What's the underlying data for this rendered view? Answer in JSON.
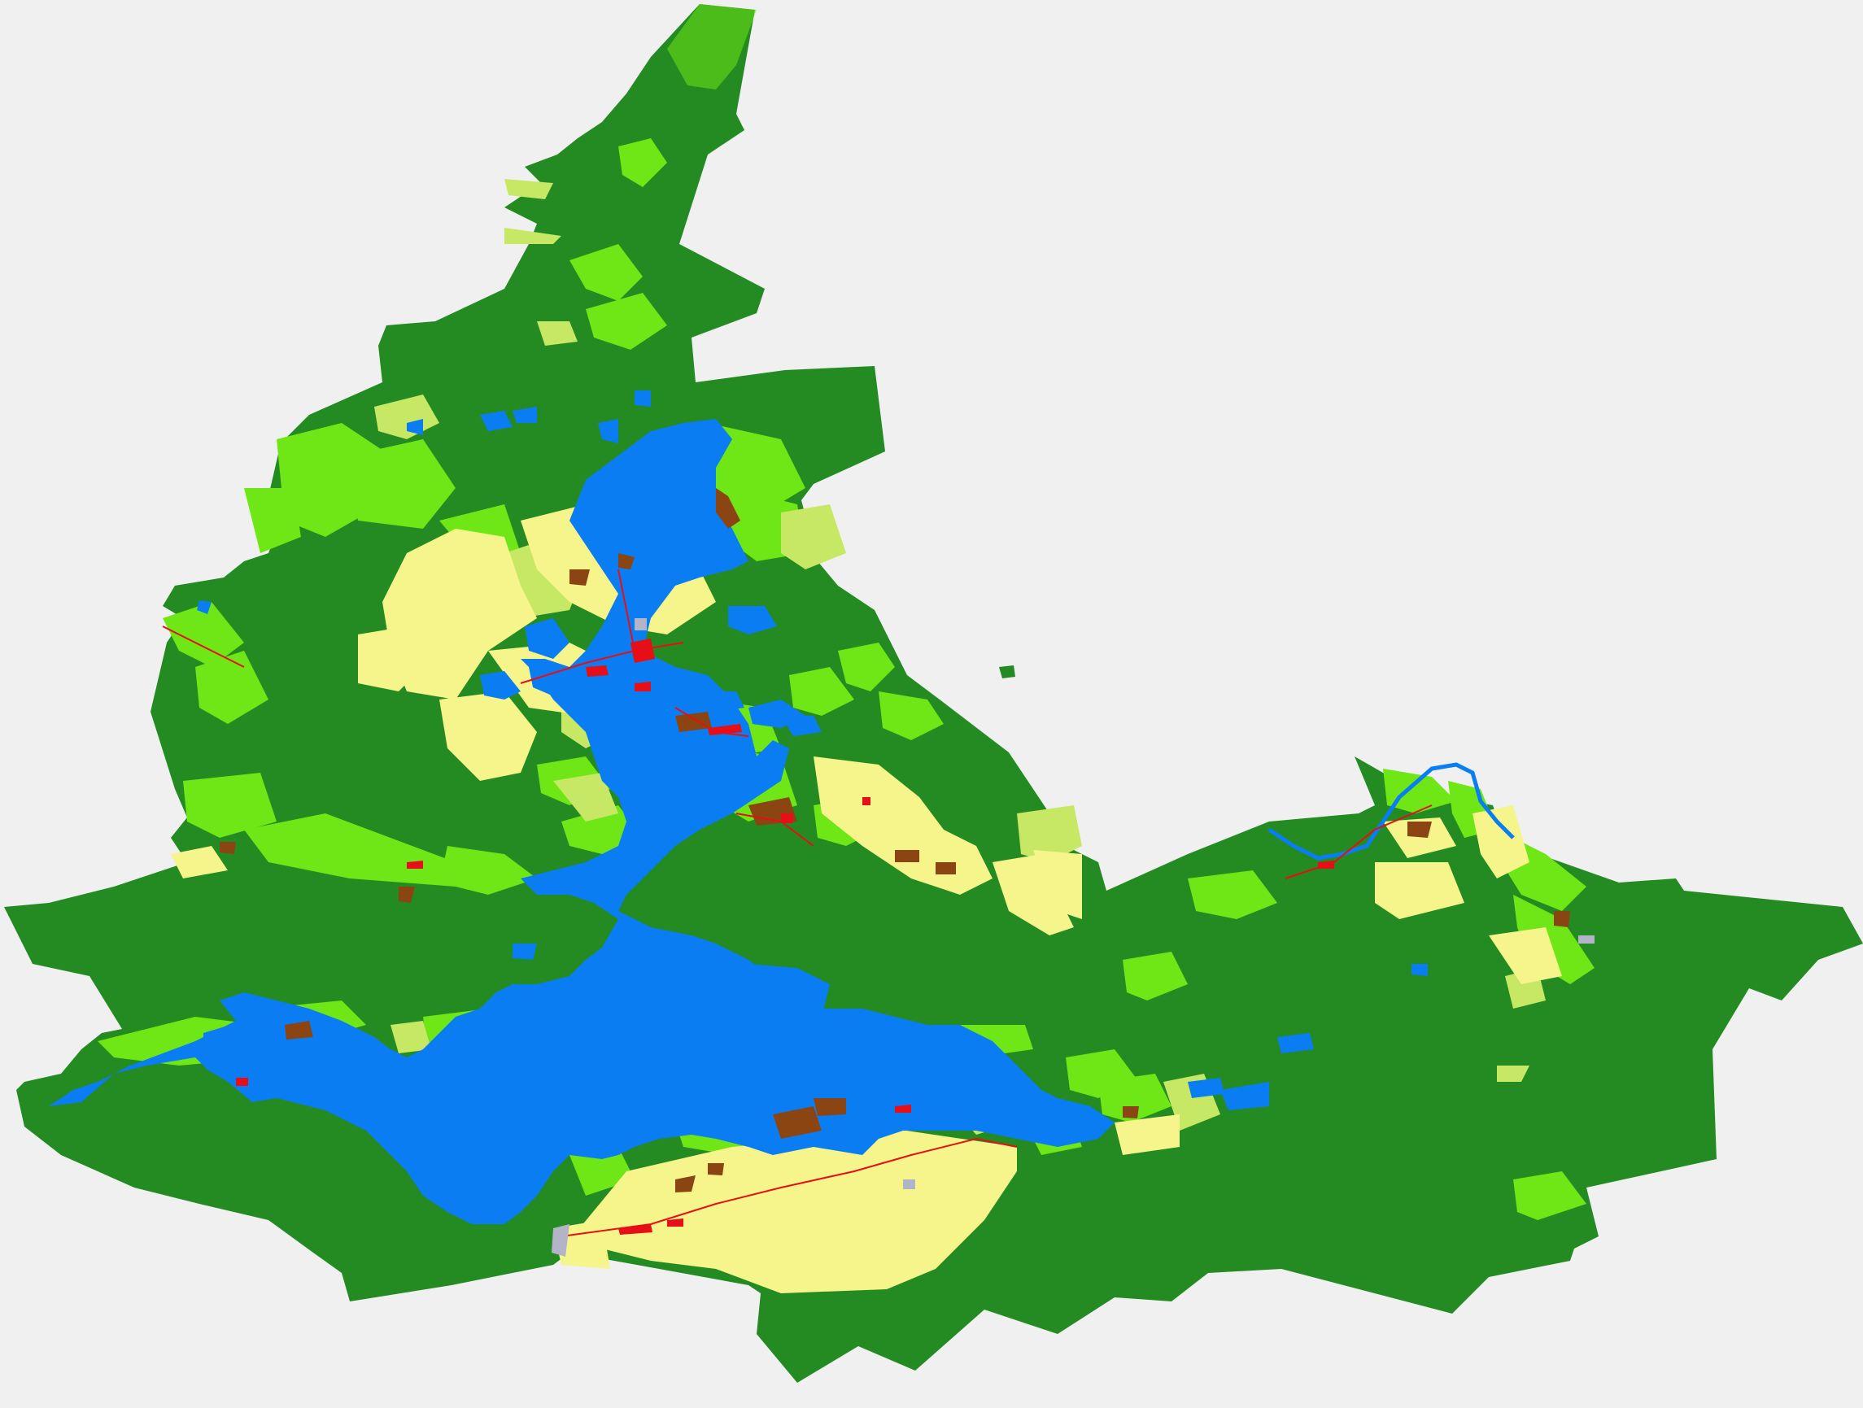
{
  "map": {
    "type": "land-cover raster",
    "background_color": "#f0f0f0",
    "classes": [
      {
        "key": "forest",
        "color": "#238b22"
      },
      {
        "key": "grassland",
        "color": "#6fe615"
      },
      {
        "key": "shrub",
        "color": "#c7e864"
      },
      {
        "key": "cropland",
        "color": "#f5f58c"
      },
      {
        "key": "water",
        "color": "#0a7df2"
      },
      {
        "key": "built-up",
        "color": "#e60f17"
      },
      {
        "key": "bare",
        "color": "#8b4513"
      },
      {
        "key": "barren-gray",
        "color": "#b4b4c8"
      }
    ]
  }
}
